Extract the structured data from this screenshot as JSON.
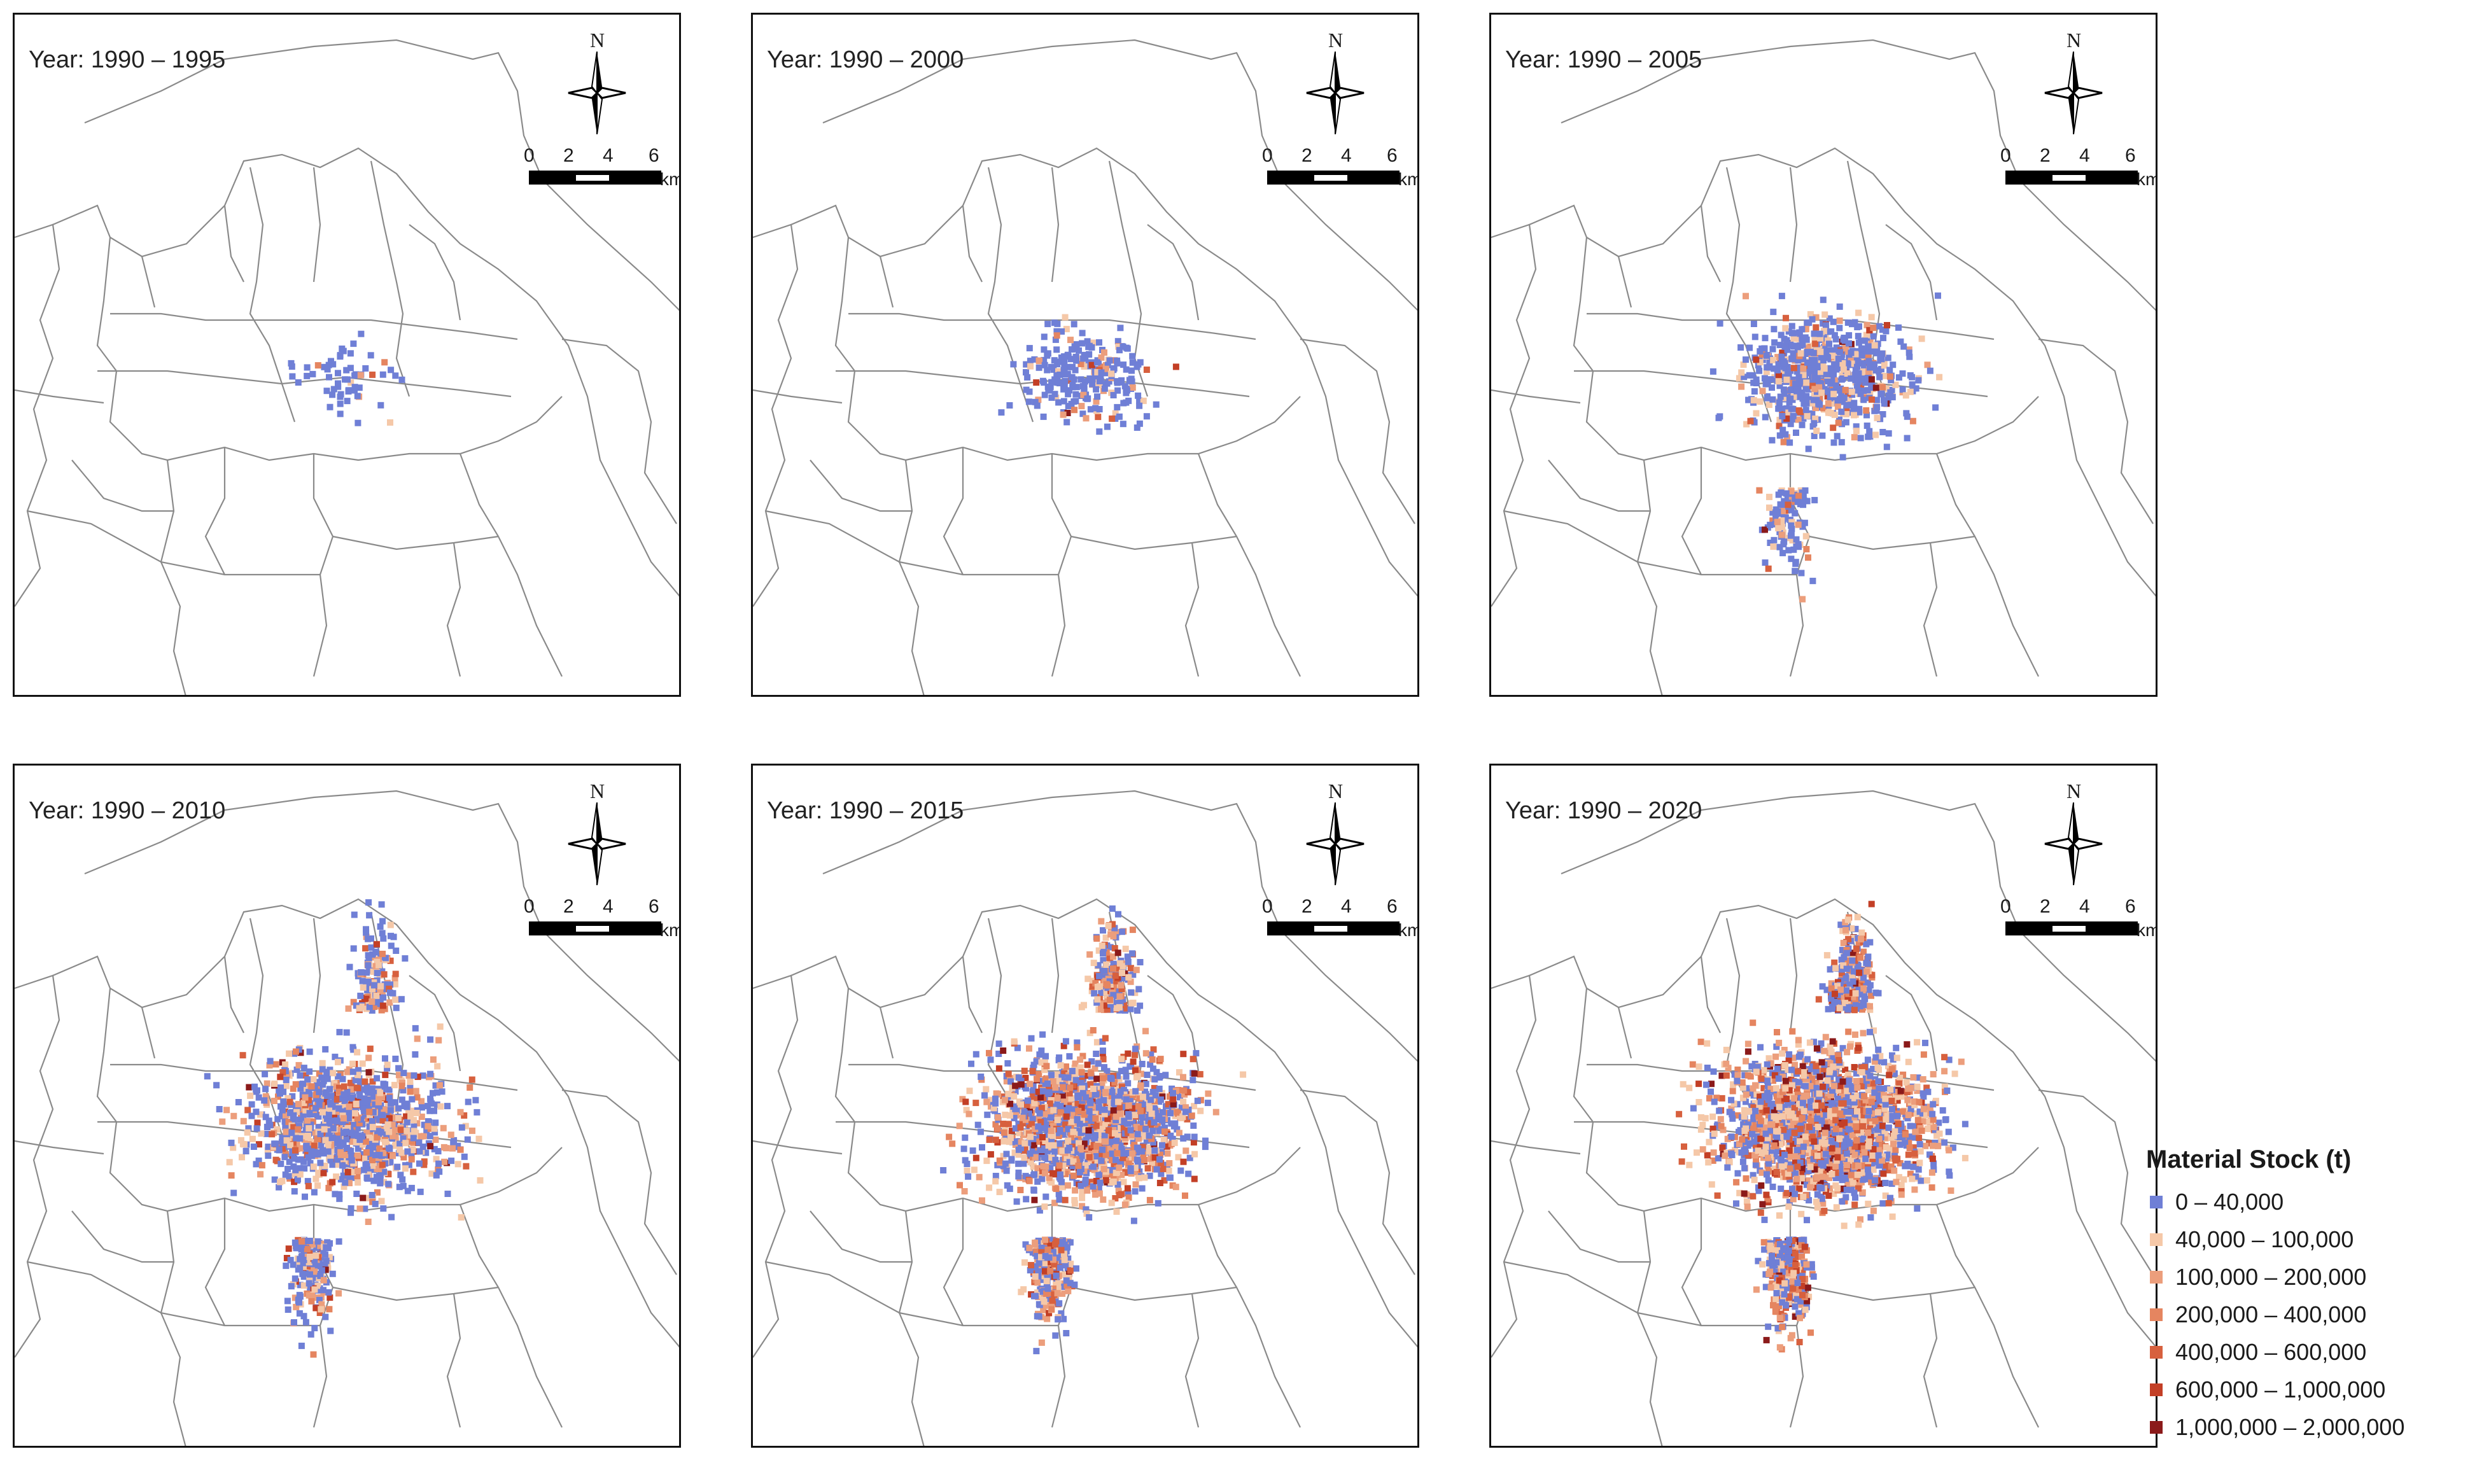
{
  "figure": {
    "panels": [
      {
        "title": "Year: 1990 – 1995"
      },
      {
        "title": "Year: 1990 – 2000"
      },
      {
        "title": "Year: 1990 – 2005"
      },
      {
        "title": "Year: 1990 – 2010"
      },
      {
        "title": "Year: 1990 – 2015"
      },
      {
        "title": "Year: 1990 – 2020"
      }
    ],
    "north_label": "N",
    "scale": {
      "ticks": [
        "0",
        "2",
        "4",
        "6"
      ],
      "unit": "km"
    },
    "legend": {
      "title": "Material Stock (t)",
      "classes": [
        {
          "label": "0 – 40,000",
          "color": "#6f7fd6"
        },
        {
          "label": "40,000 – 100,000",
          "color": "#f5c8a8"
        },
        {
          "label": "100,000 – 200,000",
          "color": "#ec9e7c"
        },
        {
          "label": "200,000 – 400,000",
          "color": "#e58560"
        },
        {
          "label": "400,000 – 600,000",
          "color": "#d7603e"
        },
        {
          "label": "600,000 – 1,000,000",
          "color": "#c33f26"
        },
        {
          "label": "1,000,000 – 2,000,000",
          "color": "#8b1a1a"
        }
      ]
    }
  }
}
